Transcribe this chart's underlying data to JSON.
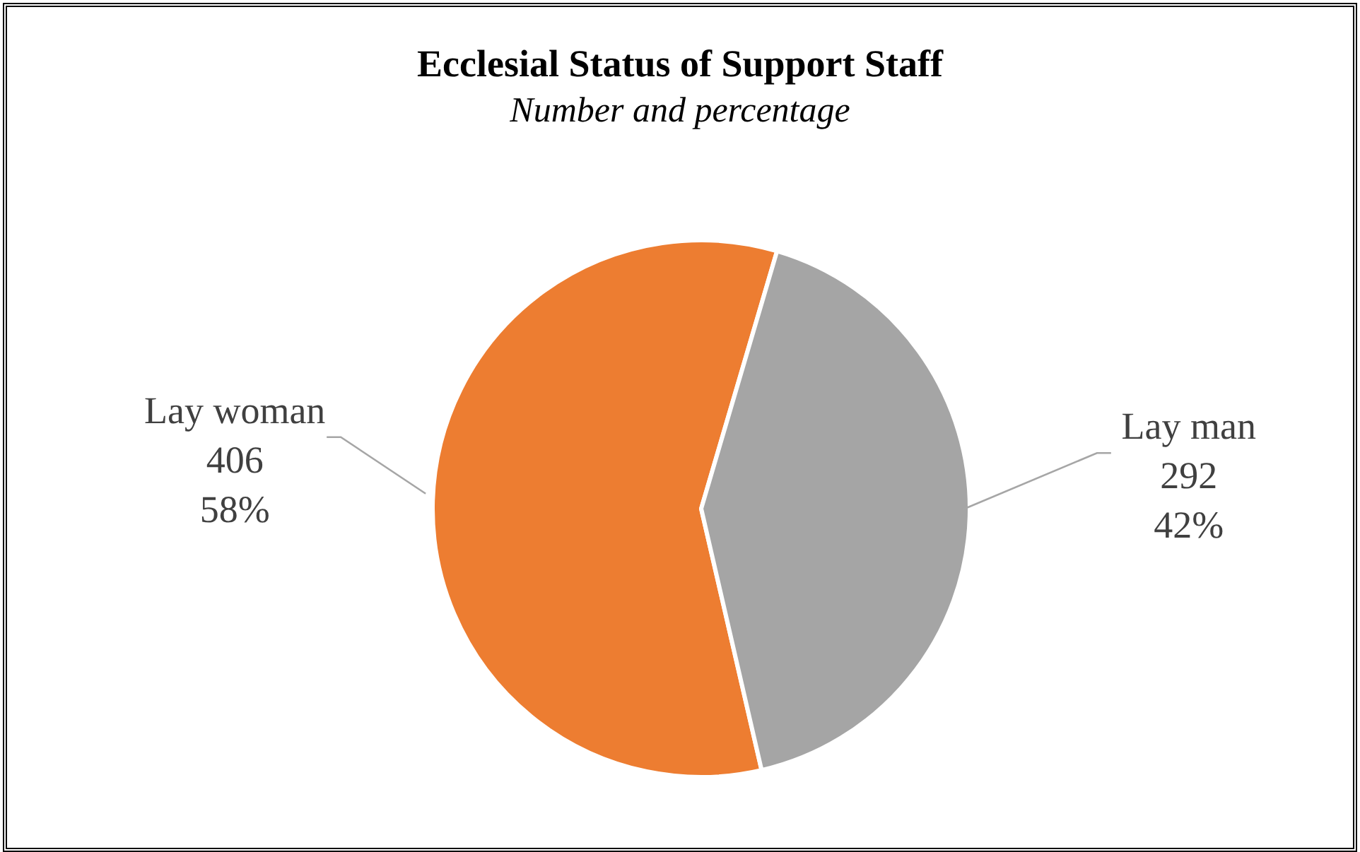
{
  "chart_data": {
    "type": "pie",
    "title": "Ecclesial Status of Support Staff",
    "subtitle": "Number and percentage",
    "categories": [
      "Lay woman",
      "Lay man"
    ],
    "values": [
      406,
      292
    ],
    "colors": [
      "#ed7d31",
      "#a5a5a5"
    ],
    "value_labels": [
      "406\n58%",
      "292\n42%"
    ]
  }
}
